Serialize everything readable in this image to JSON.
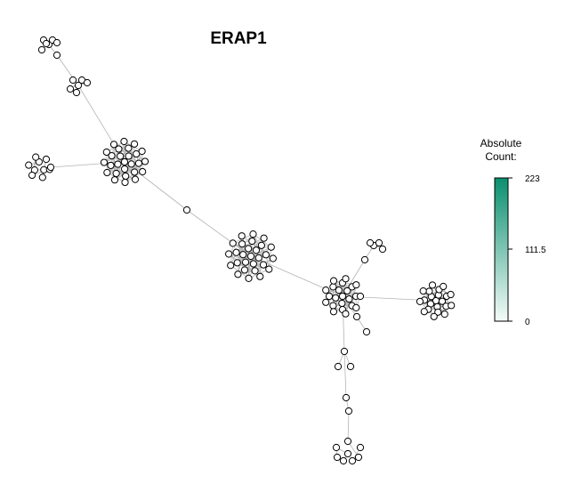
{
  "title": "ERAP1",
  "legend": {
    "title_line1": "Absolute",
    "title_line2": "Count:",
    "max_label": "223",
    "mid_label": "111.5",
    "min_label": "0",
    "color_low": "#f4fbf8",
    "color_high": "#0a8f6f"
  },
  "colors": {
    "edge": "#b3b3b3",
    "node_fill": "#ffffff",
    "node_stroke": "#000000"
  }
}
